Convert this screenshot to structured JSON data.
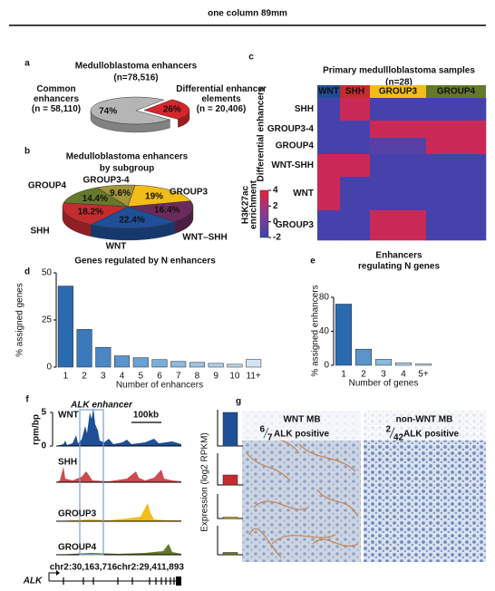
{
  "header": {
    "title": "one column 89mm"
  },
  "panel_labels": [
    "a",
    "b",
    "c",
    "d",
    "e",
    "f",
    "g"
  ],
  "chart_data": [
    {
      "type": "pie",
      "title": "Medulloblastoma enhancers",
      "subtitle": "(n=78,516)",
      "categories": [
        "Common enhancers",
        "Differential enhancer elements"
      ],
      "counts": [
        "(n = 58,110)",
        "(n = 20,406)"
      ],
      "values": [
        74,
        26
      ],
      "value_labels": [
        "74%",
        "26%"
      ],
      "colors": [
        "#b5b5b5",
        "#d7262b"
      ],
      "exploded": [
        false,
        true
      ]
    },
    {
      "type": "pie",
      "title": "Medulloblastoma enhancers",
      "subtitle": "by subgroup",
      "categories": [
        "GROUP4",
        "GROUP3-4",
        "GROUP3",
        "WNT–SHH",
        "WNT",
        "SHH"
      ],
      "values": [
        14.4,
        9.6,
        19,
        16.4,
        22.4,
        18.2
      ],
      "value_labels": [
        "14.4%",
        "9.6%",
        "19%",
        "16.4%",
        "22.4%",
        "18.2%"
      ],
      "colors": [
        "#65782b",
        "#a39438",
        "#f2bd16",
        "#6b2a5c",
        "#1e4f97",
        "#c62b30"
      ]
    },
    {
      "type": "heatmap",
      "title": "Primary medullloblastoma samples",
      "subtitle": "(n=28)",
      "columns": [
        "WNT",
        "SHH",
        "GROUP3",
        "GROUP4"
      ],
      "column_colors": [
        "#1e4f97",
        "#c62b30",
        "#f2bd16",
        "#65782b"
      ],
      "rows": [
        "SHH",
        "GROUP3-4",
        "GROUP4",
        "WNT-SHH",
        "WNT",
        "GROUP3"
      ],
      "ylabel": "Differential enhancers",
      "values": [
        [
          -1.5,
          3,
          -1.5,
          -1.5
        ],
        [
          -1.5,
          -1.5,
          3,
          3
        ],
        [
          -1.5,
          -1.5,
          -1,
          3
        ],
        [
          3,
          3,
          -1.5,
          -1.5
        ],
        [
          3,
          -1.5,
          -1.5,
          -1.5
        ],
        [
          -1.5,
          -1.5,
          3,
          -1.5
        ]
      ],
      "clim": [
        -2,
        4
      ],
      "cticks": [
        4,
        2,
        0,
        -2
      ],
      "colorbar_label": [
        "H3K27ac",
        "enrichment"
      ]
    },
    {
      "type": "bar",
      "title": "Genes regulated by N enhancers",
      "categories": [
        "1",
        "2",
        "3",
        "4",
        "5",
        "6",
        "7",
        "8",
        "9",
        "10",
        "11+"
      ],
      "values": [
        43,
        20,
        10.5,
        6,
        5,
        4,
        3,
        2.5,
        2,
        1.5,
        4
      ],
      "colors": [
        "#2a6ab1",
        "#3a79bb",
        "#4a87c4",
        "#5a94cc",
        "#6aa1d3",
        "#7badd9",
        "#8cb9df",
        "#9dc4e5",
        "#afd0ea",
        "#c0dbef",
        "#d1e5f4"
      ],
      "ylim": [
        0,
        50
      ],
      "yticks": [
        0,
        25,
        50
      ],
      "xlabel": "Number of enhancers",
      "ylabel": "% assigned genes"
    },
    {
      "type": "bar",
      "title": "Enhancers",
      "subtitle": "regulating N genes",
      "categories": [
        "1",
        "2",
        "3",
        "4",
        "5+"
      ],
      "values": [
        72,
        19,
        7,
        3,
        1.5
      ],
      "colors": [
        "#2a6ab1",
        "#5a94cc",
        "#8cb9df",
        "#b4d3ec",
        "#d1e5f4"
      ],
      "ylim": [
        0,
        80
      ],
      "yticks": [
        0,
        40,
        80
      ],
      "xlabel": "Number of genes",
      "ylabel": "% assigned enhancers"
    },
    {
      "type": "bar",
      "ylabel": "Expression (log2 RPKM)",
      "categories": [
        "WNT",
        "SHH",
        "GROUP3",
        "GROUP4"
      ],
      "values": [
        3.7,
        1.1,
        0.15,
        0.25
      ],
      "colors": [
        "#1e4f97",
        "#c62b30",
        "#f2bd16",
        "#65782b"
      ],
      "ylim": [
        0,
        4
      ]
    }
  ],
  "tracks": {
    "title": "ALK enhancer",
    "scale": "100kb",
    "ylim": [
      0,
      5
    ],
    "yticks": [
      0,
      5
    ],
    "ylabel": "rpm/bp",
    "coords": [
      "chr2:30,163,716",
      "chr2:29,411,893"
    ],
    "gene": "ALK"
  },
  "images": [
    {
      "title": "WNT MB",
      "num": "6",
      "den": "7",
      "text": "ALK positive",
      "color": "#1e4f97"
    },
    {
      "title": "non-WNT MB",
      "num": "2",
      "den": "42",
      "text": "ALK positive",
      "color": "#222222"
    }
  ]
}
